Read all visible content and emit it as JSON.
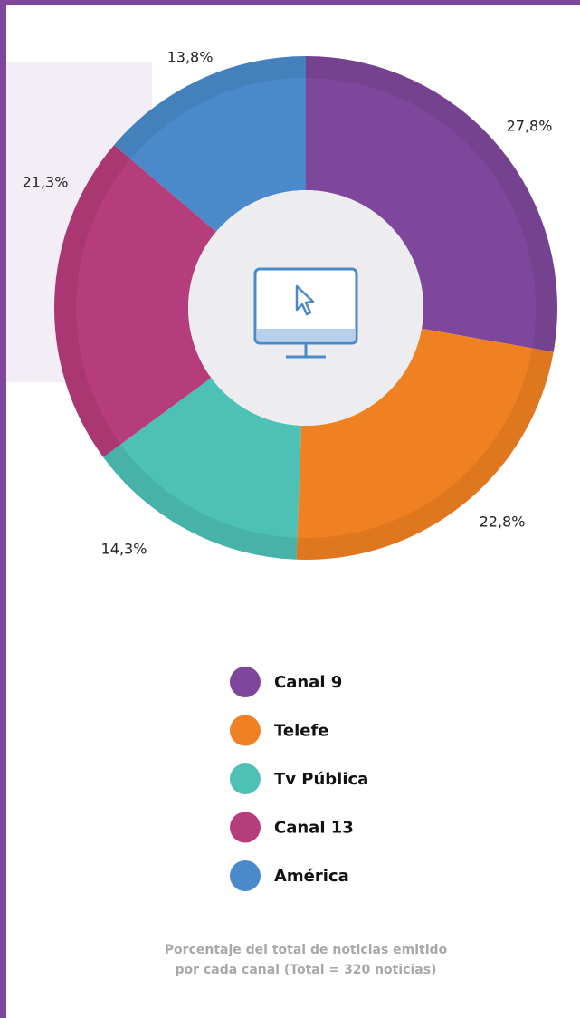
{
  "chart_data": {
    "type": "donut",
    "categories": [
      "Canal 9",
      "Telefe",
      "Tv Pública",
      "Canal 13",
      "América"
    ],
    "values": [
      27.8,
      22.8,
      14.3,
      21.3,
      13.8
    ],
    "value_labels": [
      "27,8%",
      "22,8%",
      "14,3%",
      "21,3%",
      "13,8%"
    ],
    "colors": [
      "#7e479b",
      "#f08122",
      "#4dc1b5",
      "#b63d7b",
      "#4a8acb"
    ],
    "caption": "Porcentaje del total de noticias emitido por cada canal (Total = 320 noticias)"
  }
}
